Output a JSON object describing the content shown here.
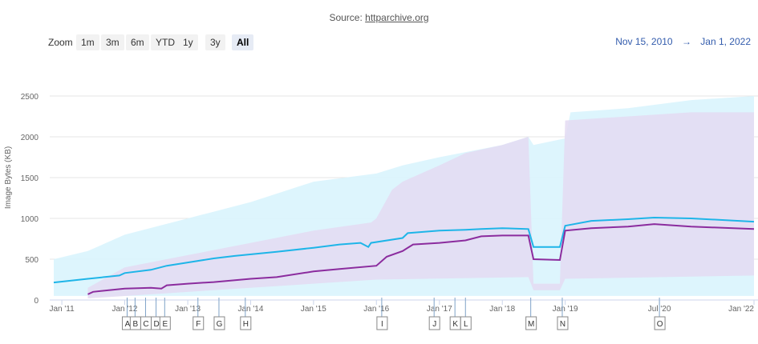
{
  "source": {
    "prefix": "Source: ",
    "link": "httparchive.org"
  },
  "zoom": {
    "label": "Zoom",
    "buttons": [
      "1m",
      "3m",
      "6m",
      "YTD",
      "1y",
      "3y",
      "All"
    ],
    "active": "All"
  },
  "range": {
    "from": "Nov 15, 2010",
    "arrow": "→",
    "to": "Jan 1, 2022"
  },
  "chart_data": {
    "type": "area",
    "ylabel": "Image Bytes (KB)",
    "ylim": [
      0,
      2500
    ],
    "yticks": [
      0,
      500,
      1000,
      1500,
      2000,
      2500
    ],
    "xrange": [
      "2010-11-15",
      "2022-01-01"
    ],
    "xticks": [
      {
        "date": "2011-01-01",
        "label": "Jan '11"
      },
      {
        "date": "2012-01-01",
        "label": "Jan '12"
      },
      {
        "date": "2013-01-01",
        "label": "Jan '13"
      },
      {
        "date": "2014-01-01",
        "label": "Jan '14"
      },
      {
        "date": "2015-01-01",
        "label": "Jan '15"
      },
      {
        "date": "2016-01-01",
        "label": "Jan '16"
      },
      {
        "date": "2017-01-01",
        "label": "Jan '17"
      },
      {
        "date": "2018-01-01",
        "label": "Jan '18"
      },
      {
        "date": "2019-01-01",
        "label": "Jan '19"
      },
      {
        "date": "2020-07-01",
        "label": "Jul '20"
      },
      {
        "date": "2022-01-01",
        "label": "Jan '22"
      }
    ],
    "grid": true,
    "series": [
      {
        "color": "#1eb5e8",
        "band_color": "#d9f4fd",
        "points": [
          [
            "2010-11-15",
            215
          ],
          [
            "2011-06-01",
            260
          ],
          [
            "2011-12-01",
            300
          ],
          [
            "2012-01-01",
            330
          ],
          [
            "2012-06-01",
            370
          ],
          [
            "2012-09-01",
            420
          ],
          [
            "2013-01-01",
            460
          ],
          [
            "2013-06-01",
            510
          ],
          [
            "2013-10-01",
            540
          ],
          [
            "2014-06-01",
            590
          ],
          [
            "2015-01-01",
            640
          ],
          [
            "2015-06-01",
            680
          ],
          [
            "2015-10-01",
            700
          ],
          [
            "2015-11-15",
            650
          ],
          [
            "2015-12-01",
            700
          ],
          [
            "2016-06-01",
            760
          ],
          [
            "2016-07-01",
            820
          ],
          [
            "2017-01-01",
            850
          ],
          [
            "2017-06-01",
            860
          ],
          [
            "2017-09-01",
            870
          ],
          [
            "2018-01-01",
            880
          ],
          [
            "2018-06-01",
            870
          ],
          [
            "2018-07-01",
            650
          ],
          [
            "2018-12-01",
            650
          ],
          [
            "2019-01-01",
            910
          ],
          [
            "2019-06-01",
            970
          ],
          [
            "2020-01-01",
            990
          ],
          [
            "2020-06-01",
            1010
          ],
          [
            "2021-01-01",
            1000
          ],
          [
            "2022-01-01",
            960
          ]
        ],
        "band_upper": [
          [
            "2010-11-15",
            500
          ],
          [
            "2011-06-01",
            600
          ],
          [
            "2012-01-01",
            800
          ],
          [
            "2013-01-01",
            1000
          ],
          [
            "2014-01-01",
            1200
          ],
          [
            "2015-01-01",
            1450
          ],
          [
            "2016-01-01",
            1550
          ],
          [
            "2016-06-01",
            1650
          ],
          [
            "2017-01-01",
            1750
          ],
          [
            "2018-01-01",
            1900
          ],
          [
            "2018-06-01",
            2000
          ],
          [
            "2018-07-01",
            1900
          ],
          [
            "2019-01-01",
            1980
          ],
          [
            "2019-02-01",
            2300
          ],
          [
            "2020-01-01",
            2350
          ],
          [
            "2021-01-01",
            2450
          ],
          [
            "2022-01-01",
            2500
          ]
        ],
        "band_lower": [
          [
            "2010-11-15",
            50
          ],
          [
            "2022-01-01",
            50
          ]
        ]
      },
      {
        "color": "#8b2c9e",
        "band_color": "#e4daf2",
        "points": [
          [
            "2011-06-01",
            70
          ],
          [
            "2011-07-01",
            100
          ],
          [
            "2012-01-01",
            140
          ],
          [
            "2012-06-01",
            150
          ],
          [
            "2012-08-01",
            140
          ],
          [
            "2012-09-01",
            180
          ],
          [
            "2013-01-01",
            200
          ],
          [
            "2013-06-01",
            220
          ],
          [
            "2014-01-01",
            260
          ],
          [
            "2014-06-01",
            280
          ],
          [
            "2015-01-01",
            350
          ],
          [
            "2015-06-01",
            380
          ],
          [
            "2016-01-01",
            420
          ],
          [
            "2016-03-01",
            530
          ],
          [
            "2016-06-01",
            600
          ],
          [
            "2016-08-01",
            680
          ],
          [
            "2017-01-01",
            700
          ],
          [
            "2017-06-01",
            730
          ],
          [
            "2017-09-01",
            780
          ],
          [
            "2018-01-01",
            790
          ],
          [
            "2018-06-01",
            790
          ],
          [
            "2018-07-01",
            500
          ],
          [
            "2018-12-01",
            490
          ],
          [
            "2019-01-01",
            850
          ],
          [
            "2019-06-01",
            880
          ],
          [
            "2020-01-01",
            900
          ],
          [
            "2020-06-01",
            930
          ],
          [
            "2021-01-01",
            900
          ],
          [
            "2022-01-01",
            870
          ]
        ],
        "band_upper": [
          [
            "2011-06-01",
            150
          ],
          [
            "2012-01-01",
            400
          ],
          [
            "2013-01-01",
            550
          ],
          [
            "2014-01-01",
            700
          ],
          [
            "2015-01-01",
            850
          ],
          [
            "2015-12-01",
            950
          ],
          [
            "2016-01-01",
            1000
          ],
          [
            "2016-04-01",
            1350
          ],
          [
            "2016-06-01",
            1450
          ],
          [
            "2017-01-01",
            1650
          ],
          [
            "2017-06-01",
            1800
          ],
          [
            "2018-01-01",
            1900
          ],
          [
            "2018-06-01",
            2000
          ],
          [
            "2018-07-01",
            200
          ],
          [
            "2018-12-01",
            200
          ],
          [
            "2019-01-01",
            2200
          ],
          [
            "2020-01-01",
            2250
          ],
          [
            "2021-01-01",
            2300
          ],
          [
            "2022-01-01",
            2300
          ]
        ],
        "band_lower": [
          [
            "2011-06-01",
            20
          ],
          [
            "2016-01-01",
            250
          ],
          [
            "2018-06-01",
            280
          ],
          [
            "2018-07-01",
            120
          ],
          [
            "2018-12-01",
            120
          ],
          [
            "2019-01-01",
            260
          ],
          [
            "2022-01-01",
            300
          ]
        ]
      }
    ],
    "flags": [
      {
        "label": "A",
        "date": "2012-01-15"
      },
      {
        "label": "B",
        "date": "2012-03-01"
      },
      {
        "label": "C",
        "date": "2012-05-01"
      },
      {
        "label": "D",
        "date": "2012-07-01"
      },
      {
        "label": "E",
        "date": "2012-08-20"
      },
      {
        "label": "F",
        "date": "2013-03-01"
      },
      {
        "label": "G",
        "date": "2013-07-01"
      },
      {
        "label": "H",
        "date": "2013-12-01"
      },
      {
        "label": "I",
        "date": "2016-02-01"
      },
      {
        "label": "J",
        "date": "2016-12-01"
      },
      {
        "label": "K",
        "date": "2017-04-01"
      },
      {
        "label": "L",
        "date": "2017-06-01"
      },
      {
        "label": "M",
        "date": "2018-06-15"
      },
      {
        "label": "N",
        "date": "2018-12-15"
      },
      {
        "label": "O",
        "date": "2020-07-01"
      }
    ]
  }
}
